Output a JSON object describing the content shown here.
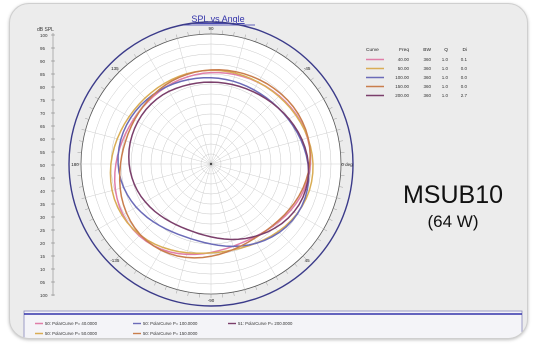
{
  "chart_data": {
    "type": "polar",
    "title": "SPL vs Angle",
    "radial_unit": "dB SPL",
    "radial_ticks": [
      "100",
      "95",
      "90",
      "85",
      "80",
      "75",
      "70",
      "65",
      "60",
      "55",
      "50",
      "45",
      "40",
      "35",
      "30",
      "25",
      "20",
      "15",
      "10",
      "05",
      "100"
    ],
    "angle_labels": [
      {
        "angle": 0,
        "label": "0 deg"
      },
      {
        "angle": 45,
        "label": "-45"
      },
      {
        "angle": 90,
        "label": "90"
      },
      {
        "angle": 135,
        "label": "135"
      },
      {
        "angle": 180,
        "label": "180"
      },
      {
        "angle": 225,
        "label": "-135"
      },
      {
        "angle": 270,
        "label": "-90"
      },
      {
        "angle": 315,
        "label": "45"
      }
    ],
    "legend_headers": [
      "Curve",
      "Freq",
      "BW",
      "Q",
      "Di"
    ],
    "legend_rows": [
      {
        "freq": "40.00",
        "bw": "360",
        "q": "1.0",
        "di": "0.1",
        "color": "#e07ea8"
      },
      {
        "freq": "50.00",
        "bw": "360",
        "q": "1.0",
        "di": "0.0",
        "color": "#d9ad55"
      },
      {
        "freq": "100.00",
        "bw": "360",
        "q": "1.0",
        "di": "0.0",
        "color": "#6b6bb8"
      },
      {
        "freq": "150.00",
        "bw": "360",
        "q": "1.0",
        "di": "0.0",
        "color": "#c97e4d"
      },
      {
        "freq": "200.00",
        "bw": "360",
        "q": "1.0",
        "di": "2.7",
        "color": "#7b3f6b"
      }
    ],
    "footer_legend": [
      {
        "label": "50: PolarCurve P= 40.0000",
        "color": "#e07ea8"
      },
      {
        "label": "50: PolarCurve P= 100.0000",
        "color": "#6b6bb8"
      },
      {
        "label": "51: PolarCurve P= 200.0000",
        "color": "#7b3f6b"
      },
      {
        "label": "50: PolarCurve P= 50.0000",
        "color": "#d9ad55"
      },
      {
        "label": "50: PolarCurve P= 150.0000",
        "color": "#c97e4d"
      }
    ],
    "grid": true
  },
  "product": {
    "name": "MSUB10",
    "power": "(64 W)"
  }
}
